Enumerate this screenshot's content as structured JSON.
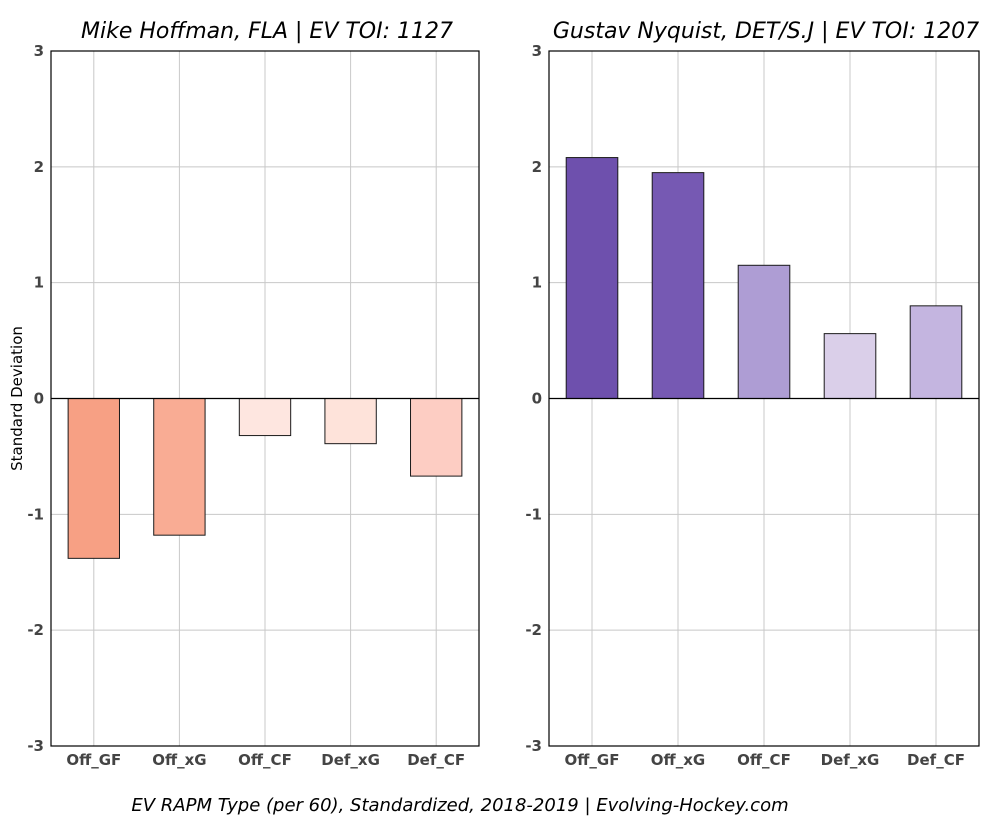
{
  "chart_data": [
    {
      "type": "bar",
      "title": "Mike Hoffman, FLA  |  EV TOI: 1127",
      "ylabel": "Standard Deviation",
      "xlabel": "",
      "ylim": [
        -3,
        3
      ],
      "yticks": [
        -3,
        -2,
        -1,
        0,
        1,
        2,
        3
      ],
      "grid": true,
      "categories": [
        "Off_GF",
        "Off_xG",
        "Off_CF",
        "Def_xG",
        "Def_CF"
      ],
      "values": [
        -1.38,
        -1.18,
        -0.32,
        -0.39,
        -0.67
      ],
      "colors": [
        "#f7a084",
        "#f9ac94",
        "#fee6e0",
        "#fee3da",
        "#fdcdc3"
      ]
    },
    {
      "type": "bar",
      "title": "Gustav Nyquist, DET/S.J  |  EV TOI: 1207",
      "ylabel": "",
      "xlabel": "",
      "ylim": [
        -3,
        3
      ],
      "yticks": [
        -3,
        -2,
        -1,
        0,
        1,
        2,
        3
      ],
      "grid": true,
      "categories": [
        "Off_GF",
        "Off_xG",
        "Off_CF",
        "Def_xG",
        "Def_CF"
      ],
      "values": [
        2.08,
        1.95,
        1.15,
        0.56,
        0.8
      ],
      "colors": [
        "#6e50ad",
        "#7659b3",
        "#ae9dd4",
        "#dacfe9",
        "#c4b5e0"
      ]
    }
  ],
  "footer": "EV RAPM Type (per 60), Standardized, 2018-2019    |    Evolving-Hockey.com"
}
